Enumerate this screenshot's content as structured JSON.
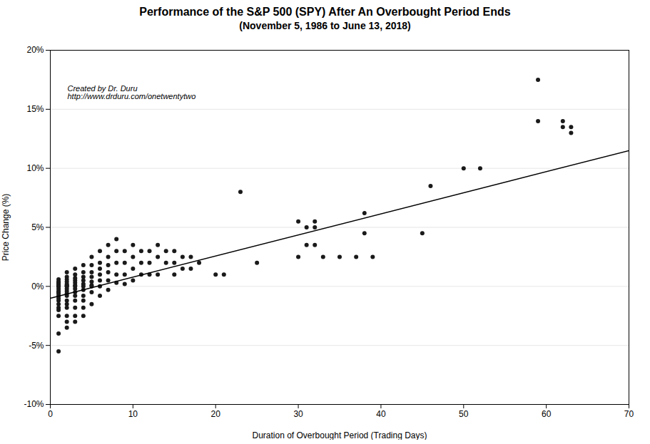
{
  "chart_data": {
    "type": "scatter",
    "title": "Performance of the S&P 500 (SPY) After An Overbought Period Ends",
    "subtitle": "(November 5, 1986 to June 13, 2018)",
    "xlabel": "Duration of Overbought Period (Trading Days)",
    "ylabel": "Price Change (%)",
    "annotations": [
      "Created by Dr. Duru",
      "http://www.drduru.com/onetwentytwo"
    ],
    "xlim": [
      0,
      70
    ],
    "ylim": [
      -0.1,
      0.2
    ],
    "xticks": [
      0,
      10,
      20,
      30,
      40,
      50,
      60,
      70
    ],
    "yticks": [
      {
        "value": -0.1,
        "label": "-10%"
      },
      {
        "value": -0.05,
        "label": "-5%"
      },
      {
        "value": 0.0,
        "label": "0%"
      },
      {
        "value": 0.05,
        "label": "5%"
      },
      {
        "value": 0.1,
        "label": "10%"
      },
      {
        "value": 0.15,
        "label": "15%"
      },
      {
        "value": 0.2,
        "label": "20%"
      }
    ],
    "grid": "y",
    "series": [
      {
        "type": "scatter",
        "color": "#1a1a1a",
        "x": [
          1,
          1,
          1,
          1,
          1,
          1,
          1,
          1,
          1,
          1,
          1,
          1,
          1,
          1,
          1,
          1,
          1,
          1,
          1,
          1,
          2,
          2,
          2,
          2,
          2,
          2,
          2,
          2,
          2,
          2,
          2,
          2,
          2,
          2,
          2,
          2,
          2,
          2,
          3,
          3,
          3,
          3,
          3,
          3,
          3,
          3,
          3,
          3,
          3,
          3,
          3,
          3,
          4,
          4,
          4,
          4,
          4,
          4,
          4,
          4,
          4,
          4,
          4,
          5,
          5,
          5,
          5,
          5,
          5,
          5,
          5,
          5,
          6,
          6,
          6,
          6,
          6,
          6,
          6,
          7,
          7,
          7,
          7,
          7,
          7,
          8,
          8,
          8,
          8,
          8,
          9,
          9,
          9,
          9,
          10,
          10,
          10,
          10,
          11,
          11,
          11,
          12,
          12,
          12,
          13,
          13,
          13,
          14,
          14,
          15,
          15,
          15,
          16,
          16,
          17,
          17,
          18,
          20,
          21,
          23,
          25,
          30,
          30,
          31,
          31,
          32,
          32,
          32,
          33,
          35,
          37,
          38,
          38,
          39,
          45,
          46,
          50,
          52,
          59,
          59,
          62,
          62,
          63,
          63
        ],
        "values": [
          0.006,
          0.004,
          0.003,
          0.002,
          0.001,
          0.0,
          0.0,
          -0.002,
          -0.004,
          -0.005,
          -0.006,
          -0.008,
          -0.01,
          -0.012,
          -0.015,
          -0.018,
          -0.02,
          -0.025,
          -0.04,
          -0.055,
          0.012,
          0.008,
          0.006,
          0.004,
          0.002,
          0.001,
          0.0,
          0.0,
          -0.002,
          -0.004,
          -0.006,
          -0.008,
          -0.012,
          -0.015,
          -0.018,
          -0.025,
          -0.03,
          -0.035,
          0.015,
          0.01,
          0.007,
          0.005,
          0.003,
          0.001,
          0.0,
          -0.002,
          -0.005,
          -0.008,
          -0.012,
          -0.018,
          -0.025,
          -0.03,
          0.018,
          0.012,
          0.008,
          0.005,
          0.002,
          0.0,
          -0.003,
          -0.008,
          -0.012,
          -0.018,
          -0.025,
          0.025,
          0.018,
          0.012,
          0.008,
          0.004,
          0.001,
          0.0,
          -0.005,
          -0.015,
          0.03,
          0.02,
          0.015,
          0.01,
          0.005,
          0.0,
          -0.008,
          0.035,
          0.025,
          0.018,
          0.012,
          0.005,
          -0.003,
          0.04,
          0.03,
          0.02,
          0.01,
          0.003,
          0.03,
          0.02,
          0.01,
          0.002,
          0.035,
          0.025,
          0.015,
          0.005,
          0.03,
          0.02,
          0.01,
          0.03,
          0.02,
          0.01,
          0.035,
          0.025,
          0.01,
          0.03,
          0.02,
          0.03,
          0.02,
          0.01,
          0.025,
          0.015,
          0.025,
          0.015,
          0.02,
          0.01,
          0.01,
          0.08,
          0.02,
          0.055,
          0.025,
          0.05,
          0.035,
          0.055,
          0.05,
          0.035,
          0.025,
          0.025,
          0.025,
          0.062,
          0.045,
          0.025,
          0.045,
          0.085,
          0.1,
          0.1,
          0.175,
          0.14,
          0.14,
          0.135,
          0.135,
          0.13
        ]
      },
      {
        "type": "line",
        "color": "#000000",
        "x": [
          0,
          70
        ],
        "values": [
          -0.01,
          0.115
        ]
      }
    ]
  }
}
